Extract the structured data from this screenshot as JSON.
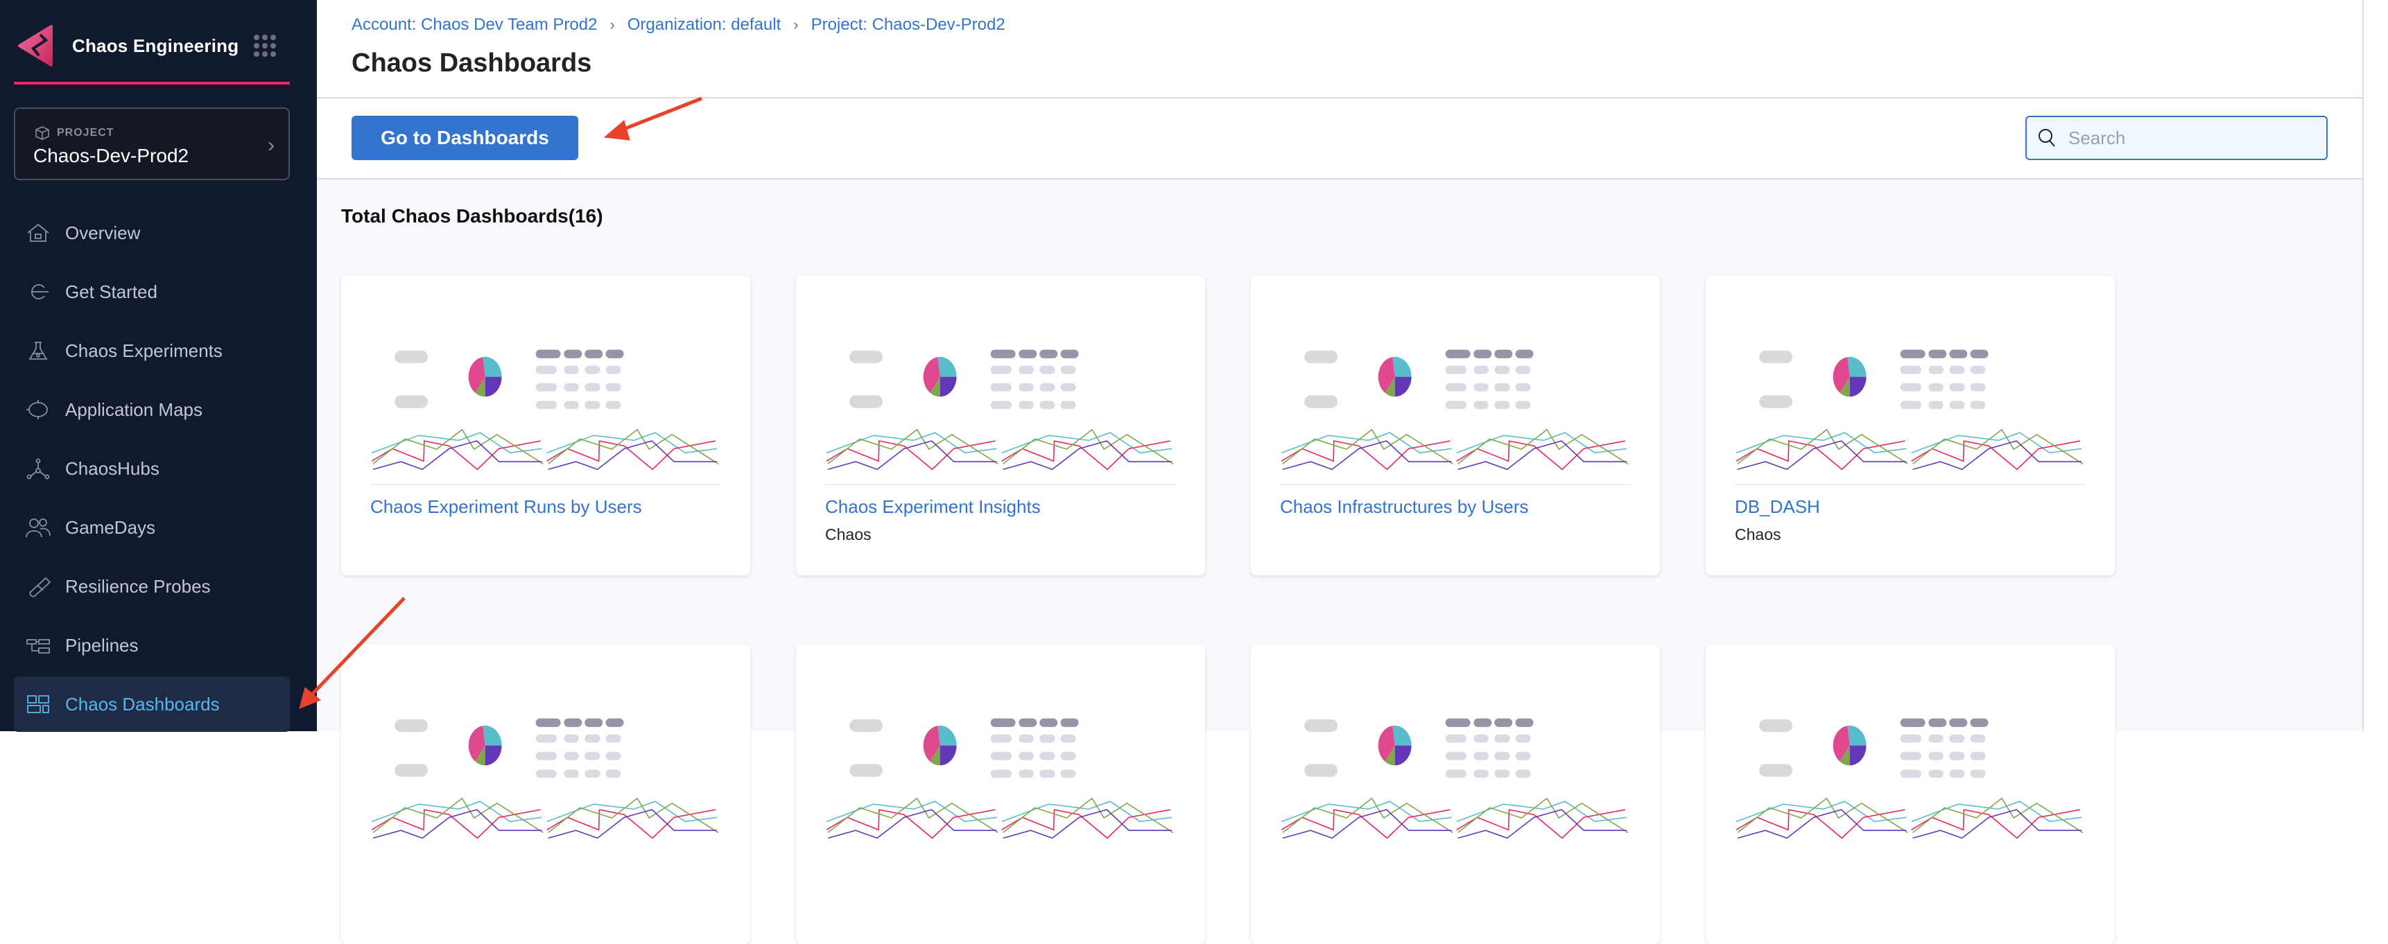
{
  "sidebar": {
    "brand_title": "Chaos Engineering",
    "project_label": "PROJECT",
    "project_name": "Chaos-Dev-Prod2",
    "items": [
      {
        "label": "Overview",
        "icon": "home-icon"
      },
      {
        "label": "Get Started",
        "icon": "get-started-icon"
      },
      {
        "label": "Chaos Experiments",
        "icon": "flask-icon"
      },
      {
        "label": "Application Maps",
        "icon": "target-icon"
      },
      {
        "label": "ChaosHubs",
        "icon": "hub-icon"
      },
      {
        "label": "GameDays",
        "icon": "users-icon"
      },
      {
        "label": "Resilience Probes",
        "icon": "probe-icon"
      },
      {
        "label": "Pipelines",
        "icon": "pipeline-icon"
      },
      {
        "label": "Chaos Dashboards",
        "icon": "dashboard-icon",
        "active": true
      }
    ]
  },
  "header": {
    "breadcrumbs": [
      "Account: Chaos Dev Team Prod2",
      "Organization: default",
      "Project: Chaos-Dev-Prod2"
    ],
    "title": "Chaos Dashboards"
  },
  "toolbar": {
    "go_button": "Go to Dashboards",
    "search_placeholder": "Search"
  },
  "content": {
    "total_label": "Total Chaos Dashboards(16)",
    "cards": [
      {
        "title": "Chaos Experiment Runs by Users",
        "subtitle": ""
      },
      {
        "title": "Chaos Experiment Insights",
        "subtitle": "Chaos"
      },
      {
        "title": "Chaos Infrastructures by Users",
        "subtitle": ""
      },
      {
        "title": "DB_DASH",
        "subtitle": "Chaos"
      },
      {},
      {},
      {},
      {}
    ]
  },
  "colors": {
    "sidebar_bg": "#0f1a2e",
    "accent": "#3274d0",
    "brand_pink": "#e8285a",
    "active_nav": "#56b6f0",
    "annotation_arrow": "#e8432a"
  }
}
